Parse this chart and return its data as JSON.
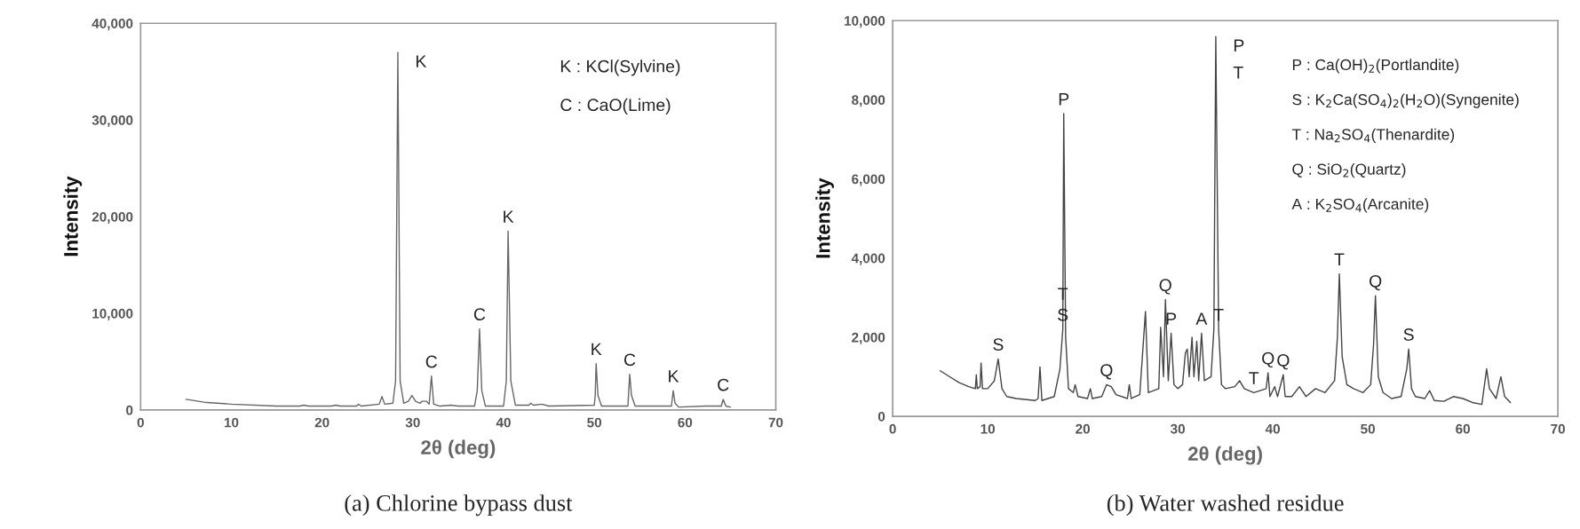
{
  "chart_data": [
    {
      "type": "line",
      "title": "(a) Chlorine bypass dust",
      "xlabel": "2θ (deg)",
      "ylabel": "Intensity",
      "xlim": [
        0,
        70
      ],
      "xticks": [
        0,
        10,
        20,
        30,
        40,
        50,
        60,
        70
      ],
      "ylim": [
        0,
        40000
      ],
      "yticks": [
        0,
        {
          "value": 10000,
          "label": "10,000"
        },
        {
          "value": 20000,
          "label": "20,000"
        },
        {
          "value": 30000,
          "label": "30,000"
        },
        {
          "value": 40000,
          "label": "40,000"
        }
      ],
      "grid": false,
      "legend": false,
      "series": [
        {
          "color": "#666666",
          "x": [
            5,
            7,
            10,
            15,
            17.5,
            18,
            18.5,
            21,
            21.5,
            22,
            23.8,
            24,
            24.3,
            26.3,
            26.6,
            26.9,
            27.8,
            28.1,
            28.35,
            28.6,
            29,
            29.5,
            29.9,
            30.3,
            30.8,
            31,
            31.5,
            31.8,
            32.05,
            32.3,
            33,
            34.2,
            35,
            36.8,
            37.1,
            37.35,
            37.6,
            38,
            40,
            40.3,
            40.5,
            40.8,
            41.3,
            42.8,
            43,
            43.3,
            44.2,
            45,
            50,
            50.1,
            50.2,
            50.4,
            50.8,
            53.7,
            53.9,
            54.1,
            54.5,
            58.5,
            58.7,
            58.9,
            59.3,
            62.2,
            64,
            64.2,
            64.5,
            65
          ],
          "values": [
            1100,
            800,
            600,
            400,
            400,
            500,
            400,
            400,
            500,
            400,
            400,
            600,
            400,
            600,
            1400,
            600,
            700,
            3000,
            37000,
            3000,
            700,
            900,
            1500,
            900,
            700,
            900,
            900,
            600,
            3500,
            600,
            400,
            500,
            400,
            400,
            2000,
            8400,
            2000,
            400,
            400,
            3000,
            18500,
            3000,
            500,
            500,
            700,
            500,
            600,
            400,
            500,
            1500,
            4800,
            1500,
            400,
            400,
            3700,
            1500,
            400,
            400,
            2000,
            700,
            300,
            400,
            400,
            1100,
            400,
            300
          ]
        }
      ],
      "annotations": [
        "K : KCl(Sylvine)",
        "C : CaO(Lime)",
        {
          "text": "K",
          "x": 28.35,
          "y": 37000
        },
        {
          "text": "C",
          "x": 32.05,
          "y": 3500
        },
        {
          "text": "C",
          "x": 37.35,
          "y": 8400
        },
        {
          "text": "K",
          "x": 40.5,
          "y": 18500
        },
        {
          "text": "K",
          "x": 50.2,
          "y": 4800
        },
        {
          "text": "C",
          "x": 53.9,
          "y": 3700
        },
        {
          "text": "K",
          "x": 58.7,
          "y": 2000
        },
        {
          "text": "C",
          "x": 64.2,
          "y": 1100
        }
      ]
    },
    {
      "type": "line",
      "title": "(b) Water washed residue",
      "xlabel": "2θ (deg)",
      "ylabel": "Intensity",
      "xlim": [
        0,
        70
      ],
      "xticks": [
        0,
        10,
        20,
        30,
        40,
        50,
        60,
        70
      ],
      "ylim": [
        0,
        10000
      ],
      "yticks": [
        0,
        {
          "value": 2000,
          "label": "2,000"
        },
        {
          "value": 4000,
          "label": "4,000"
        },
        {
          "value": 6000,
          "label": "6,000"
        },
        {
          "value": 8000,
          "label": "8,000"
        },
        {
          "value": 10000,
          "label": "10,000"
        }
      ],
      "grid": false,
      "legend": false,
      "series": [
        {
          "color": "#444444",
          "x": [
            5,
            6,
            7,
            8,
            8.7,
            8.8,
            8.9,
            9.2,
            9.3,
            9.45,
            10,
            10.7,
            11.1,
            11.5,
            12,
            13,
            15,
            15.3,
            15.5,
            15.7,
            17,
            17.6,
            17.9,
            18,
            18.2,
            18.5,
            19,
            19.2,
            19.5,
            20.5,
            20.8,
            21,
            22,
            22.5,
            23,
            23.5,
            24.7,
            24.9,
            25.1,
            26,
            26.6,
            26.9,
            28,
            28.2,
            28.5,
            28.7,
            29,
            29.3,
            29.6,
            30,
            30.5,
            30.8,
            31,
            31.2,
            31.5,
            31.7,
            32,
            32.2,
            32.5,
            32.8,
            33.5,
            33.8,
            34,
            34.3,
            34.6,
            35,
            36,
            36.5,
            37,
            38,
            39.3,
            39.5,
            39.7,
            40.2,
            40.5,
            41.1,
            41.3,
            42,
            42.8,
            43.5,
            44.5,
            45.5,
            46.5,
            46.8,
            47,
            47.3,
            47.8,
            48.5,
            49.5,
            50.3,
            50.6,
            50.8,
            51.1,
            51.6,
            52.5,
            53.5,
            54.1,
            54.3,
            54.6,
            55,
            56,
            56.5,
            57,
            58,
            59,
            60,
            61,
            62,
            62.5,
            62.8,
            63.5,
            64,
            64.4,
            65
          ],
          "values": [
            1150,
            1000,
            850,
            750,
            700,
            1050,
            700,
            750,
            1350,
            700,
            700,
            900,
            1450,
            700,
            500,
            450,
            400,
            450,
            1250,
            400,
            500,
            1200,
            2200,
            7650,
            2000,
            700,
            600,
            800,
            500,
            450,
            700,
            450,
            500,
            800,
            750,
            550,
            450,
            800,
            450,
            550,
            2650,
            600,
            700,
            2250,
            1000,
            2950,
            900,
            2100,
            800,
            700,
            800,
            1600,
            1700,
            1000,
            2000,
            1000,
            1900,
            900,
            2100,
            900,
            1000,
            2200,
            9600,
            2200,
            800,
            700,
            750,
            900,
            700,
            600,
            700,
            1100,
            500,
            750,
            500,
            1050,
            500,
            500,
            750,
            500,
            700,
            600,
            900,
            2000,
            3600,
            1500,
            800,
            700,
            600,
            800,
            1800,
            3050,
            1000,
            600,
            450,
            500,
            1200,
            1700,
            700,
            500,
            450,
            650,
            400,
            380,
            500,
            450,
            350,
            300,
            1200,
            700,
            450,
            1000,
            500,
            350
          ]
        }
      ],
      "annotations": [
        "P : Ca(OH)$_{2}$(Portlandite)",
        "S : K$_{2}$Ca(SO$_{4}$)$_{2}$(H$_{2}$O)(Syngenite)",
        "T : Na$_{2}$SO$_{4}$(Thenardite)",
        "Q : SiO$_{2}$(Quartz)",
        "A : K$_{2}$SO$_{4}$(Arcanite)",
        {
          "text": "S",
          "x": 11.1,
          "y": 1450
        },
        {
          "text": "S",
          "x": 17.9,
          "y": 2200
        },
        {
          "text": "T",
          "x": 17.9,
          "y": 2200
        },
        {
          "text": "P",
          "x": 18,
          "y": 7650
        },
        {
          "text": "Q",
          "x": 22.5,
          "y": 800
        },
        {
          "text": "Q",
          "x": 28.7,
          "y": 2950
        },
        {
          "text": "P",
          "x": 29.3,
          "y": 2100
        },
        {
          "text": "A",
          "x": 32.5,
          "y": 2100
        },
        {
          "text": "T",
          "x": 34.3,
          "y": 2200
        },
        {
          "text": "P",
          "x": 34,
          "y": 9600
        },
        {
          "text": "T",
          "x": 34,
          "y": 9600
        },
        {
          "text": "T",
          "x": 38,
          "y": 600
        },
        {
          "text": "Q",
          "x": 39.5,
          "y": 1100
        },
        {
          "text": "Q",
          "x": 41.1,
          "y": 1050
        },
        {
          "text": "T",
          "x": 47,
          "y": 3600
        },
        {
          "text": "Q",
          "x": 50.8,
          "y": 3050
        },
        {
          "text": "S",
          "x": 54.3,
          "y": 1700
        }
      ]
    }
  ]
}
